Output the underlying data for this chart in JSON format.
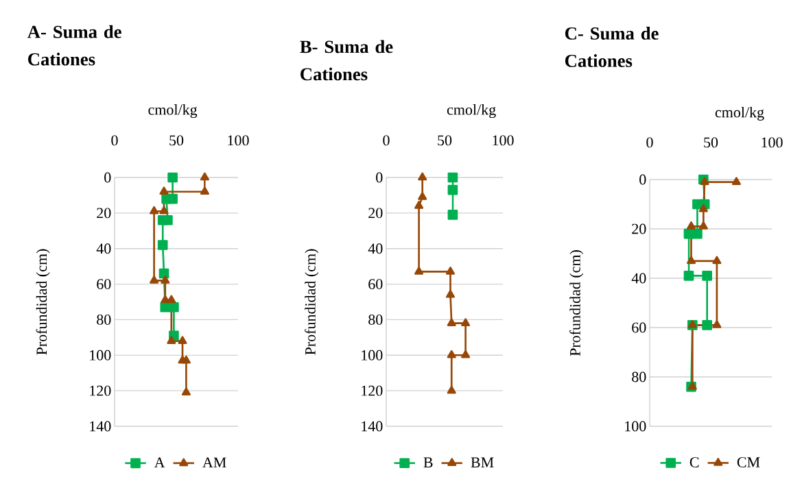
{
  "chart_data": [
    {
      "type": "line",
      "title": "A- Suma de Cationes",
      "xlabel": "cmol/kg",
      "ylabel": "Profundidad (cm)",
      "xlim": [
        0,
        100
      ],
      "xticks": [
        0,
        50,
        100
      ],
      "ylim": [
        140,
        0
      ],
      "yticks": [
        0,
        20,
        40,
        60,
        80,
        100,
        120,
        140
      ],
      "grid": "y",
      "legend": "bottom",
      "series": [
        {
          "name": "A",
          "color": "#00b050",
          "marker": "square",
          "x": [
            47,
            47,
            42,
            43,
            39,
            39,
            40,
            41,
            48,
            48
          ],
          "values": [
            0,
            12,
            12,
            24,
            24,
            38,
            54,
            73,
            73,
            89
          ]
        },
        {
          "name": "AM",
          "color": "#974706",
          "marker": "triangle",
          "x": [
            73,
            73,
            40,
            40,
            32,
            32,
            41,
            41,
            46,
            46,
            55,
            55,
            58,
            58
          ],
          "values": [
            0,
            8,
            8,
            19,
            19,
            58,
            58,
            69,
            69,
            92,
            92,
            103,
            103,
            121
          ]
        }
      ]
    },
    {
      "type": "line",
      "title": "B- Suma de Cationes",
      "xlabel": "cmol/kg",
      "ylabel": "Profundidad (cm)",
      "xlim": [
        0,
        100
      ],
      "xticks": [
        0,
        50,
        100
      ],
      "ylim": [
        140,
        0
      ],
      "yticks": [
        0,
        20,
        40,
        60,
        80,
        100,
        120,
        140
      ],
      "grid": "y",
      "legend": "bottom",
      "series": [
        {
          "name": "B",
          "color": "#00b050",
          "marker": "square",
          "x": [
            57,
            57,
            57
          ],
          "values": [
            0,
            7,
            21
          ]
        },
        {
          "name": "BM",
          "color": "#974706",
          "marker": "triangle",
          "x": [
            31,
            31,
            28,
            28,
            55,
            55,
            56,
            68,
            68,
            56,
            56
          ],
          "values": [
            0,
            11,
            16,
            53,
            53,
            66,
            82,
            82,
            100,
            100,
            120
          ]
        }
      ]
    },
    {
      "type": "line",
      "title": "C- Suma de Cationes",
      "xlabel": "cmol/kg",
      "ylabel": "Profundidad (cm)",
      "xlim": [
        0,
        100
      ],
      "xticks": [
        0,
        50,
        100
      ],
      "ylim": [
        100,
        0
      ],
      "yticks": [
        0,
        20,
        40,
        60,
        80,
        100
      ],
      "grid": "y",
      "legend": "bottom",
      "series": [
        {
          "name": "C",
          "color": "#00b050",
          "marker": "square",
          "x": [
            44,
            45,
            39,
            39,
            32,
            32,
            47,
            47,
            35,
            34
          ],
          "values": [
            0,
            10,
            10,
            22,
            22,
            39,
            39,
            59,
            59,
            84
          ]
        },
        {
          "name": "CM",
          "color": "#974706",
          "marker": "triangle",
          "x": [
            71,
            45,
            44,
            44,
            34,
            34,
            55,
            55,
            35,
            35
          ],
          "values": [
            1,
            1,
            12,
            19,
            19,
            33,
            33,
            59,
            59,
            84
          ]
        }
      ]
    }
  ]
}
